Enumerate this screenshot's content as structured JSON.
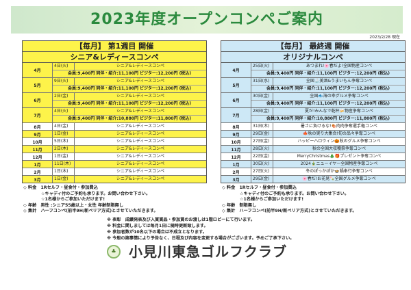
{
  "title": "2023年度オープンコンペご案内",
  "as_of": "2023/2/28 現在",
  "left": {
    "header1": "【毎月】 第1週目 開催",
    "header2": "シニア&レディースコンペ",
    "rows": [
      {
        "month": "4月",
        "date": "4日(火)",
        "event": "シニア&レディースコンペ",
        "fee": "会員:9,400円 同伴・紹介:11,100円 ビジター:12,200円 (税込)"
      },
      {
        "month": "5月",
        "date": "9日(火)",
        "event": "シニア&レディースコンペ",
        "fee": "会員:9,400円 同伴・紹介:11,100円 ビジター:12,200円 (税込)"
      },
      {
        "month": "6月",
        "date": "2日(金)",
        "event": "シニア&レディースコンペ",
        "fee": "会員:9,400円 同伴・紹介:11,100円 ビジター:12,200円 (税込)"
      },
      {
        "month": "7月",
        "date": "4日(火)",
        "event": "シニア&レディースコンペ",
        "fee": "会員:9,400円 同伴・紹介:10,880円 ビジター:11,800円 (税込)"
      },
      {
        "month": "8月",
        "date": "4日(金)",
        "event": "シニア&レディースコンペ"
      },
      {
        "month": "9月",
        "date": "1日(金)",
        "event": "シニア&レディースコンペ"
      },
      {
        "month": "10月",
        "date": "5日(木)",
        "event": "シニア&レディースコンペ"
      },
      {
        "month": "11月",
        "date": "2日(木)",
        "event": "シニア&レディースコンペ"
      },
      {
        "month": "12月",
        "date": "1日(金)",
        "event": "シニア&レディースコンペ"
      },
      {
        "month": "1月",
        "date": "11日(木)",
        "event": "シニア&レディースコンペ"
      },
      {
        "month": "2月",
        "date": "1日(木)",
        "event": "シニア&レディースコンペ"
      },
      {
        "month": "3月",
        "date": "1日(金)",
        "event": "シニア&レディースコンペ"
      }
    ],
    "notes": [
      "◇ 料金　1Rセルフ・昼食付・参加費込",
      "☆キャディ付のご予約も承ります。お問い合わせ下さい。",
      "☆1名様からご参加いただけます!",
      "◇ 年齢　男性 :シニア55歳以上・女性 年齢制限無し",
      "◇ 集計　ハーフコンペ(前半9H/新ペリア方式)とさせていただきます。"
    ]
  },
  "right": {
    "header1": "【毎月】 最終週 開催",
    "header2": "オリジナルコンペ",
    "rows": [
      {
        "month": "4月",
        "date": "25日(火)",
        "event": "あつまれ!🌸春だよ!全国物産コンペ",
        "fee": "会員:9,400円 同伴・紹介:11,100円 ビジター:12,200円 (税込)"
      },
      {
        "month": "5月",
        "date": "31日(水)",
        "event": "全国🍶美酒&うまいもん争奪コンペ",
        "fee": "会員:9,400円 同伴・紹介:11,100円 ビジター:12,200円 (税込)"
      },
      {
        "month": "6月",
        "date": "30日(金)",
        "event": "全国🐟海の幸グルメ争奪コンペ",
        "fee": "会員:9,400円 同伴・紹介:11,100円 ビジター:12,200円 (税込)"
      },
      {
        "month": "7月",
        "date": "28日(金)",
        "event": "夏だ!みんなで乾杯🍻物産争奪コンペ",
        "fee": "会員:9,400円 同伴・紹介:10,880円 ビジター:11,800円 (税込)"
      },
      {
        "month": "8月",
        "date": "31日(木)",
        "event": "暑さに負けるな!🍖肉肉争奪選手権コンペ"
      },
      {
        "month": "9月",
        "date": "29日(金)",
        "event": "🍁秋の実り大集合!旬の品々争奪コンペ"
      },
      {
        "month": "10月",
        "date": "27日(金)",
        "event": "ハッピーハロウィン🎃秋のグルメ争奪コンペ"
      },
      {
        "month": "11月",
        "date": "28日(火)",
        "event": "秋の全国大収穫祭争奪コンペ"
      },
      {
        "month": "12月",
        "date": "22日(金)",
        "event": "MerryChristmas🎄🎁プレゼント争奪コンペ"
      },
      {
        "month": "1月",
        "date": "30日(火)",
        "event": "2024🎍ニューイヤー全国物産争奪コンペ"
      },
      {
        "month": "2月",
        "date": "27日(火)",
        "event": "冬のぽっかぽか🍲鍋奉行争奪コンペ"
      },
      {
        "month": "3月",
        "date": "29日(金)",
        "event": "🌸春だ!お花見🍡全国グルメ争奪コンペ"
      }
    ],
    "notes": [
      "◇ 料金　1Rセルフ・昼食付・参加費込",
      "☆キャディ付のご予約も承ります。お問い合わせ下さい。",
      "☆1名様からご参加いただけます!",
      "◇ 年齢　制限無し",
      "◇ 集計　ハーフコンペ(前半9H/新ペリア方式)とさせていただきます。"
    ]
  },
  "footer_notes": [
    "※ 表彰　成績発表及び入賞賞品・参加賞のお渡しは1階ロビーにて行います。",
    "※ 料金に関しましては毎月1日に随時更新致します。",
    "※ 参加者数が10名以下の場合は不成立となります。",
    "※ 今般の諸事情により予告なく、日程及び内容を変更する場合がございます。予めご了承下さい。"
  ],
  "club_name": "小見川東急ゴルフクラブ",
  "colors": {
    "title_green": "#2b8a3e",
    "left_accent": "#fdf34a",
    "right_accent": "#cde8f6"
  }
}
